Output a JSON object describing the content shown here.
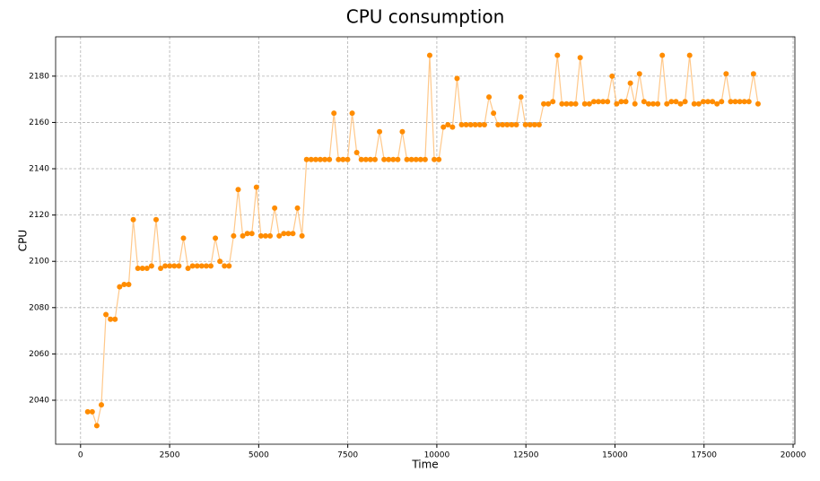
{
  "chart_data": {
    "type": "line",
    "title": "CPU consumption",
    "x_label": "Time",
    "y_label": "CPU",
    "xlim": [
      -700,
      20050
    ],
    "ylim": [
      2021,
      2197
    ],
    "xticks": [
      0,
      2500,
      5000,
      7500,
      10000,
      12500,
      15000,
      17500,
      20000
    ],
    "yticks": [
      2040,
      2060,
      2080,
      2100,
      2120,
      2140,
      2160,
      2180
    ],
    "grid": true,
    "series": [
      {
        "line_color": "#ffc88a",
        "color": "#ff8c00",
        "x": [
          200,
          328,
          456,
          584,
          712,
          840,
          968,
          1096,
          1224,
          1352,
          1480,
          1608,
          1736,
          1864,
          1992,
          2120,
          2248,
          2376,
          2504,
          2632,
          2760,
          2888,
          3016,
          3144,
          3272,
          3400,
          3528,
          3656,
          3784,
          3912,
          4040,
          4168,
          4296,
          4424,
          4552,
          4680,
          4808,
          4936,
          5064,
          5192,
          5320,
          5448,
          5576,
          5704,
          5832,
          5960,
          6088,
          6216,
          6344,
          6472,
          6600,
          6728,
          6856,
          6984,
          7112,
          7240,
          7368,
          7496,
          7624,
          7752,
          7880,
          8008,
          8136,
          8264,
          8392,
          8520,
          8648,
          8776,
          8904,
          9032,
          9160,
          9288,
          9416,
          9544,
          9672,
          9800,
          9928,
          10056,
          10184,
          10312,
          10440,
          10568,
          10696,
          10824,
          10952,
          11080,
          11208,
          11336,
          11464,
          11592,
          11720,
          11848,
          11976,
          12104,
          12232,
          12360,
          12488,
          12616,
          12744,
          12872,
          13000,
          13128,
          13256,
          13384,
          13512,
          13640,
          13768,
          13896,
          14024,
          14152,
          14280,
          14408,
          14536,
          14664,
          14792,
          14920,
          15048,
          15176,
          15304,
          15432,
          15560,
          15688,
          15816,
          15944,
          16072,
          16200,
          16328,
          16456,
          16584,
          16712,
          16840,
          16968,
          17096,
          17224,
          17352,
          17480,
          17608,
          17736,
          17864,
          17992,
          18120,
          18248,
          18376,
          18504,
          18632,
          18760,
          18888,
          19016
        ],
        "values": [
          2035,
          2035,
          2029,
          2038,
          2077,
          2075,
          2075,
          2089,
          2090,
          2090,
          2118,
          2097,
          2097,
          2097,
          2098,
          2118,
          2097,
          2098,
          2098,
          2098,
          2098,
          2110,
          2097,
          2098,
          2098,
          2098,
          2098,
          2098,
          2110,
          2100,
          2098,
          2098,
          2111,
          2131,
          2111,
          2112,
          2112,
          2132,
          2111,
          2111,
          2111,
          2123,
          2111,
          2112,
          2112,
          2112,
          2123,
          2111,
          2144,
          2144,
          2144,
          2144,
          2144,
          2144,
          2164,
          2144,
          2144,
          2144,
          2164,
          2147,
          2144,
          2144,
          2144,
          2144,
          2156,
          2144,
          2144,
          2144,
          2144,
          2156,
          2144,
          2144,
          2144,
          2144,
          2144,
          2189,
          2144,
          2144,
          2158,
          2159,
          2158,
          2179,
          2159,
          2159,
          2159,
          2159,
          2159,
          2159,
          2171,
          2164,
          2159,
          2159,
          2159,
          2159,
          2159,
          2171,
          2159,
          2159,
          2159,
          2159,
          2168,
          2168,
          2169,
          2189,
          2168,
          2168,
          2168,
          2168,
          2188,
          2168,
          2168,
          2169,
          2169,
          2169,
          2169,
          2180,
          2168,
          2169,
          2169,
          2177,
          2168,
          2181,
          2169,
          2168,
          2168,
          2168,
          2189,
          2168,
          2169,
          2169,
          2168,
          2169,
          2189,
          2168,
          2168,
          2169,
          2169,
          2169,
          2168,
          2169,
          2181,
          2169,
          2169,
          2169,
          2169,
          2169,
          2181,
          2168
        ]
      }
    ]
  }
}
